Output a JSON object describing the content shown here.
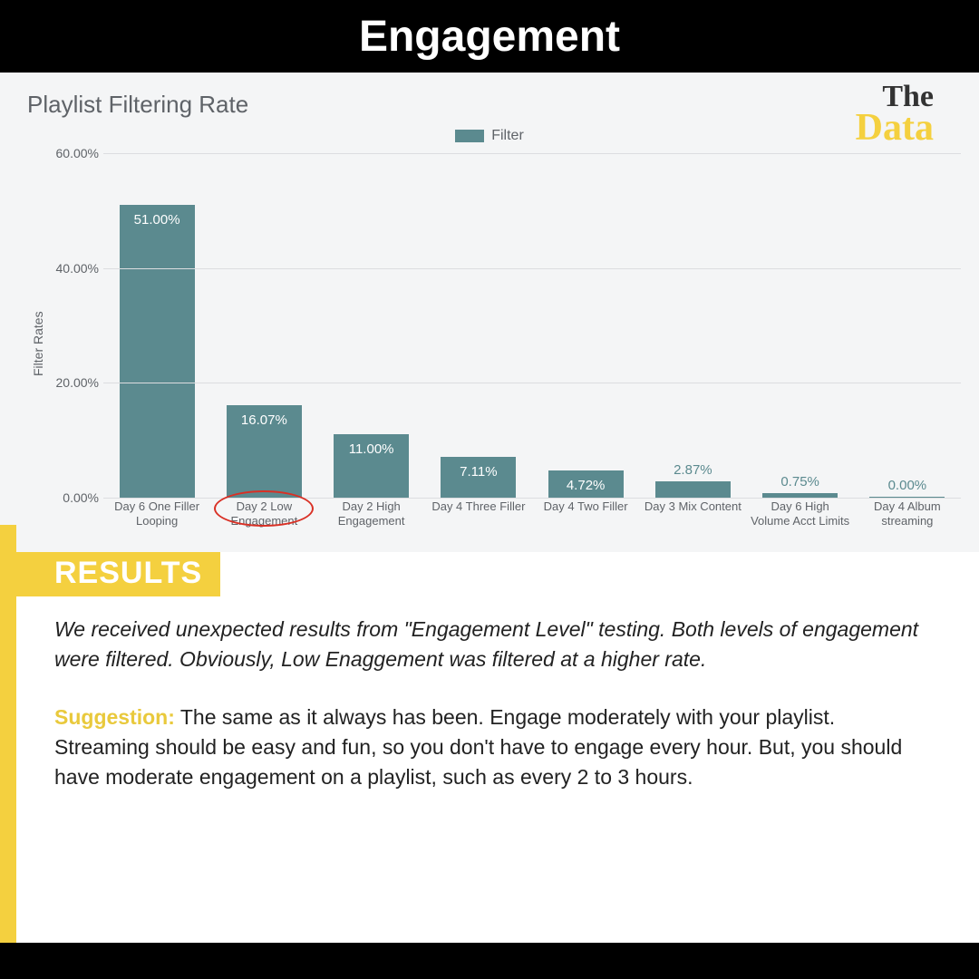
{
  "header": {
    "title": "Engagement"
  },
  "logo": {
    "line1": "The",
    "line2": "Data",
    "color1": "#333333",
    "color2": "#f4d03f"
  },
  "chart": {
    "type": "bar",
    "title": "Playlist Filtering Rate",
    "legend_label": "Filter",
    "yaxis_label": "Filter Rates",
    "bar_color": "#5b8a8f",
    "background_color": "#f4f5f6",
    "grid_color": "#dcdde0",
    "text_color": "#5f6368",
    "ylim": [
      0,
      60
    ],
    "yticks": [
      "0.00%",
      "20.00%",
      "40.00%",
      "60.00%"
    ],
    "ytick_values": [
      0,
      20,
      40,
      60
    ],
    "categories": [
      "Day 6 One Filler Looping",
      "Day 2 Low Engagement",
      "Day 2 High Engagement",
      "Day 4 Three Filler",
      "Day 4 Two Filler",
      "Day 3 Mix Content",
      "Day 6 High Volume Acct Limits",
      "Day 4 Album streaming"
    ],
    "values": [
      51.0,
      16.07,
      11.0,
      7.11,
      4.72,
      2.87,
      0.75,
      0.0
    ],
    "value_labels": [
      "51.00%",
      "16.07%",
      "11.00%",
      "7.11%",
      "4.72%",
      "2.87%",
      "0.75%",
      "0.00%"
    ],
    "label_inside": [
      true,
      true,
      true,
      true,
      true,
      false,
      false,
      false
    ],
    "circled_index": 1,
    "circle_color": "#d93025",
    "bar_width": 0.7
  },
  "results": {
    "heading": "RESULTS",
    "para1": "We received unexpected results from \"Engagement Level\" testing. Both levels of engagement were filtered. Obviously, Low Enaggement was filtered at a higher rate.",
    "suggestion_label": "Suggestion:",
    "para2": " The same as it always has been. Engage moderately with your playlist. Streaming should be easy and fun, so you don't have to engage every hour. But, you should have moderate engagement on a playlist, such as every 2 to 3 hours."
  },
  "colors": {
    "accent_yellow": "#f4d03f",
    "black": "#000000",
    "white": "#ffffff"
  }
}
